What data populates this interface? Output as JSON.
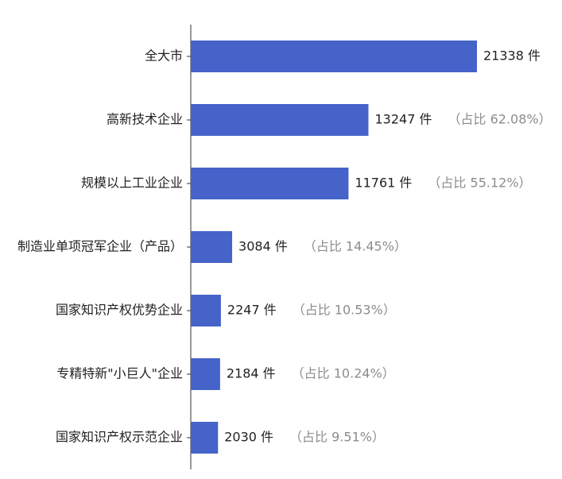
{
  "chart_data": {
    "type": "bar",
    "orientation": "horizontal",
    "categories": [
      "全大市",
      "高新技术企业",
      "规模以上工业企业",
      "制造业单项冠军企业（产品）",
      "国家知识产权优势企业",
      "专精特新\"小巨人\"企业",
      "国家知识产权示范企业"
    ],
    "values": [
      21338,
      13247,
      11761,
      3084,
      2247,
      2184,
      2030
    ],
    "value_labels": [
      "21338 件",
      "13247 件",
      "11761 件",
      "3084 件",
      "2247 件",
      "2184 件",
      "2030 件"
    ],
    "percent_labels": [
      "",
      "（占比 62.08%）",
      "（占比 55.12%）",
      "（占比 14.45%）",
      "（占比 10.53%）",
      "（占比 10.24%）",
      "（占比 9.51%）"
    ],
    "title": "",
    "xlabel": "",
    "ylabel": "",
    "xlim": [
      0,
      21338
    ],
    "grid": false,
    "legend": "none",
    "colors": {
      "bar": "#4563C9",
      "axis": "#333333",
      "category_text": "#222222",
      "value_text": "#222222",
      "percent_text": "#8C8C8C"
    }
  }
}
